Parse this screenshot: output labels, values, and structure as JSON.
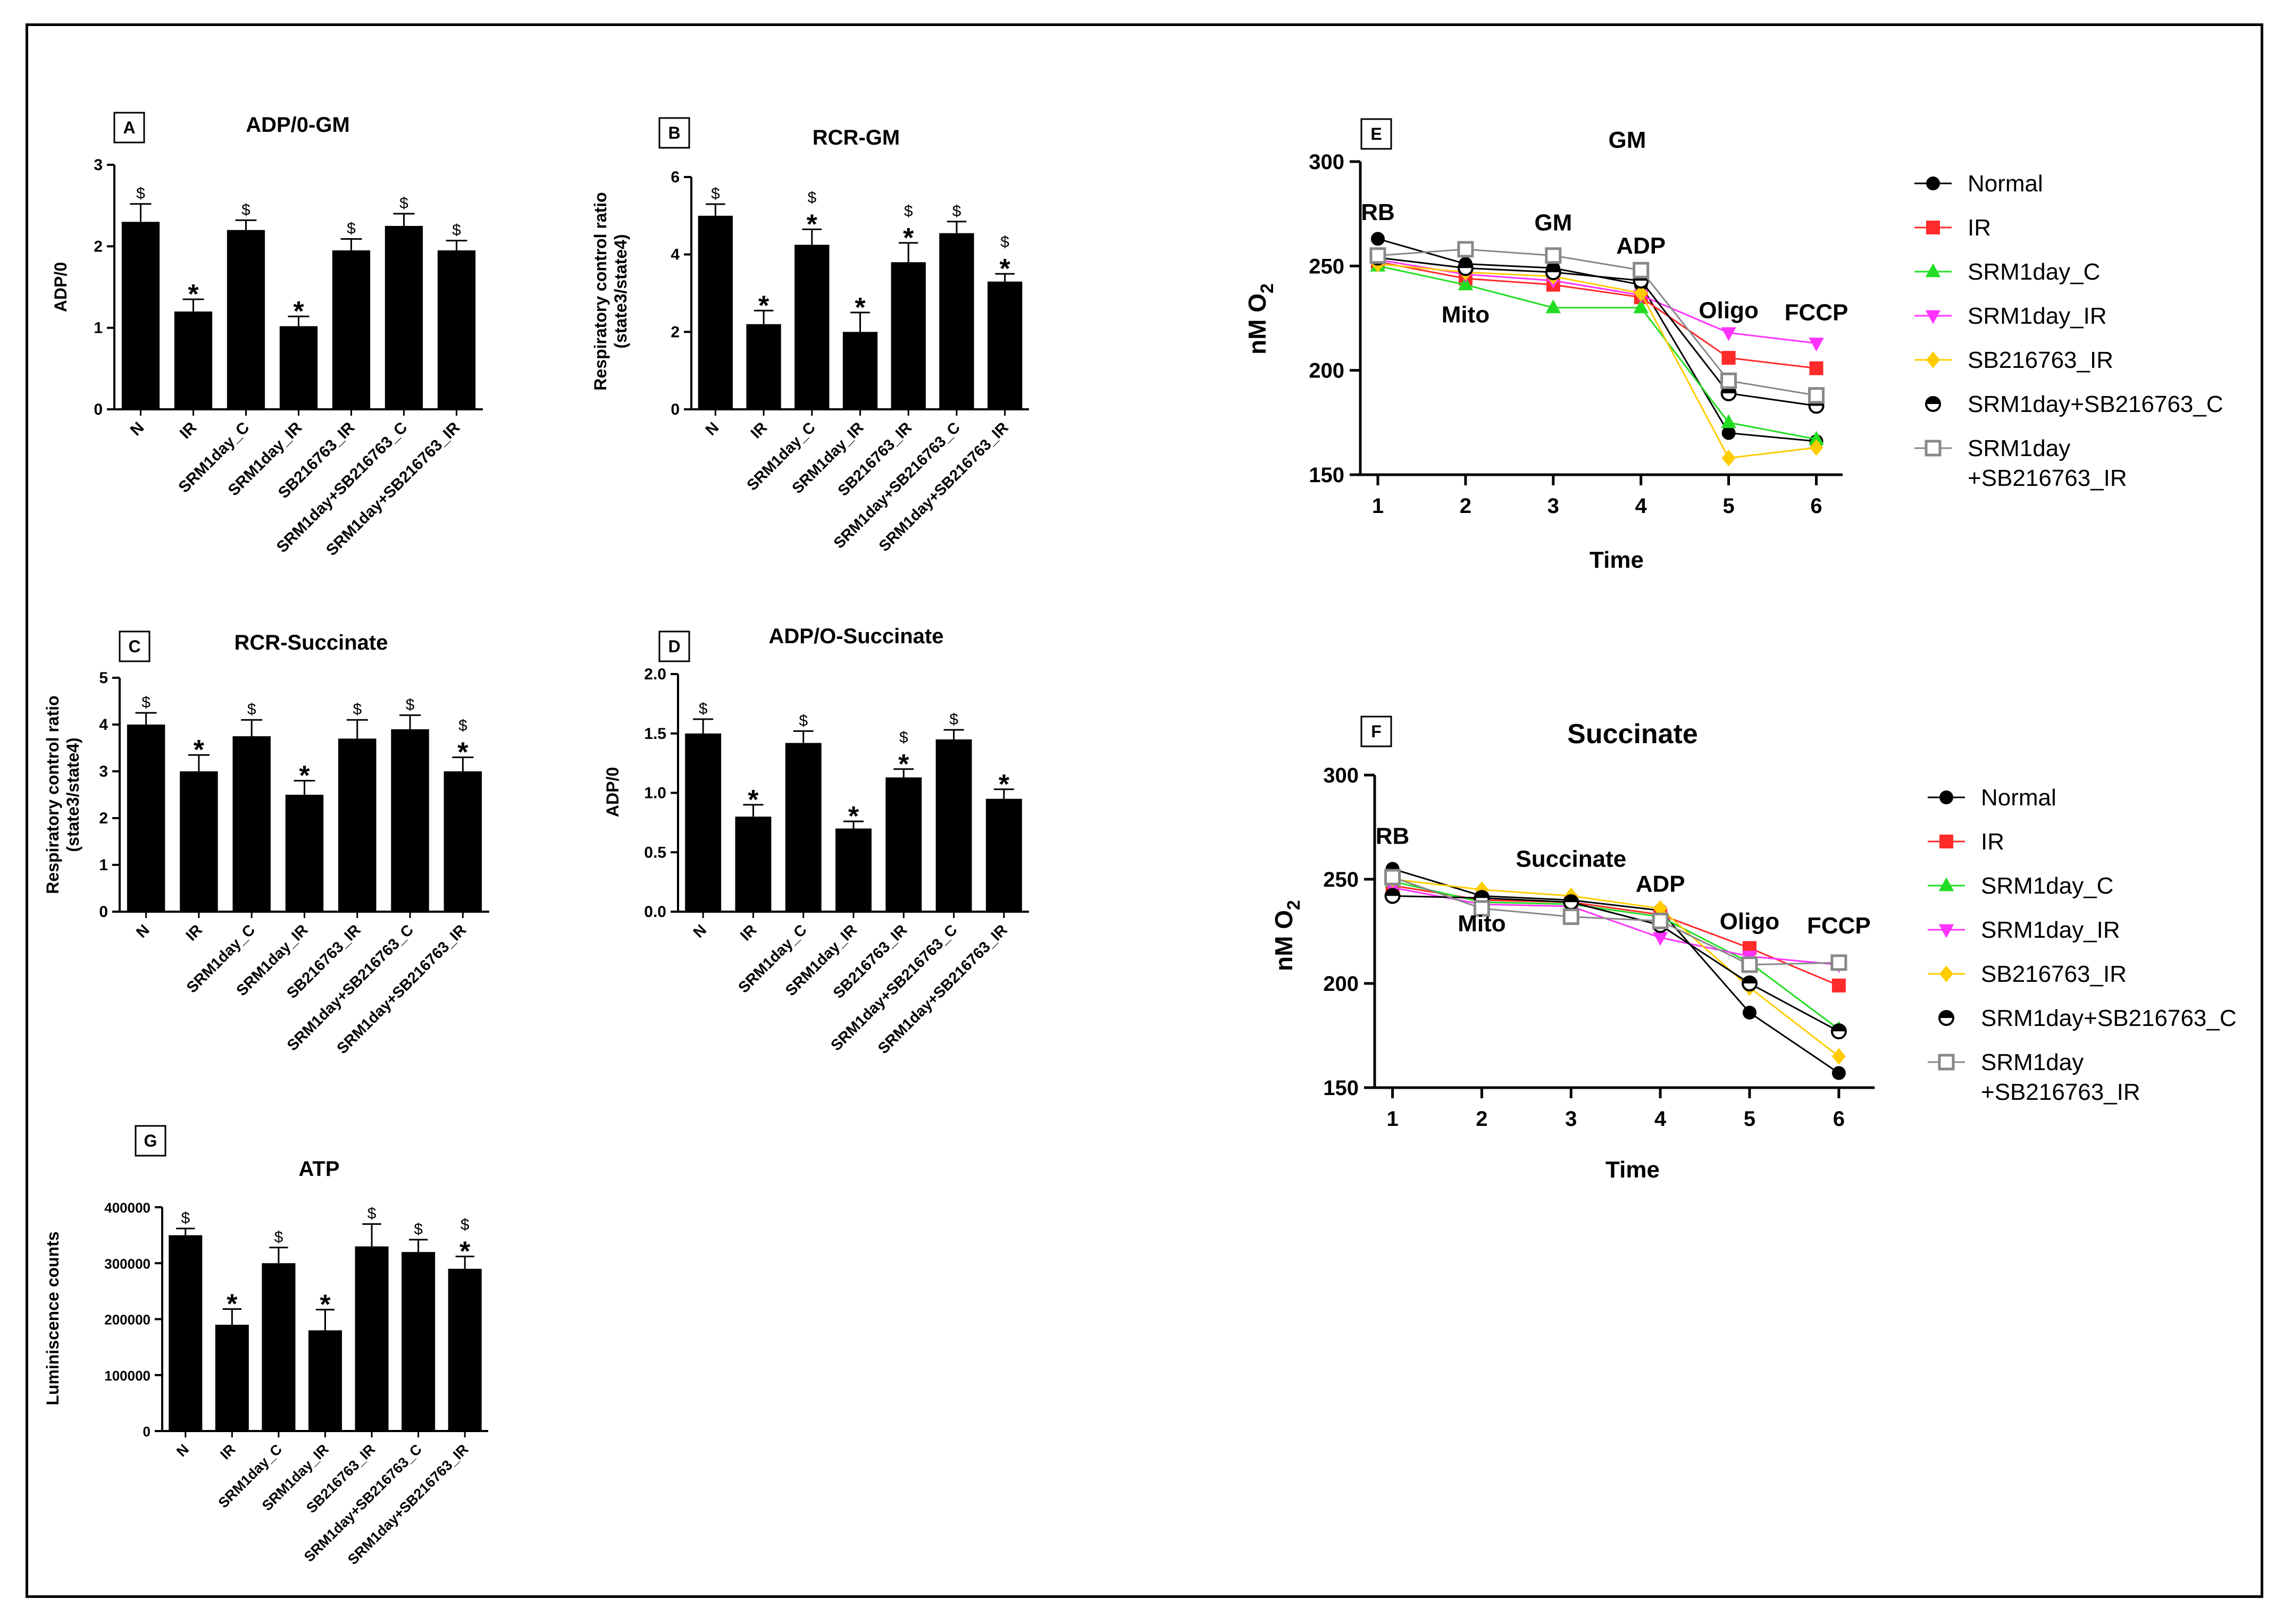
{
  "chart_data": [
    {
      "id": "A",
      "type": "bar",
      "panel_label": "A",
      "title": "ADP/0-GM",
      "ylabel": "ADP/0",
      "ylim": [
        0,
        3
      ],
      "yticks": [
        0,
        1,
        2,
        3
      ],
      "ytick_labels": [
        "0",
        "1",
        "2",
        "3"
      ],
      "categories": [
        "N",
        "IR",
        "SRM1day_C",
        "SRM1day_IR",
        "SB216763_IR",
        "SRM1day+SB216763_C",
        "SRM1day+SB216763_IR"
      ],
      "values": [
        2.3,
        1.2,
        2.2,
        1.02,
        1.95,
        2.25,
        1.95
      ],
      "errors": [
        0.22,
        0.15,
        0.12,
        0.12,
        0.14,
        0.15,
        0.12
      ],
      "annotations": [
        [
          "$"
        ],
        [
          "*"
        ],
        [
          "$"
        ],
        [
          "*"
        ],
        [
          "$"
        ],
        [
          "$"
        ],
        [
          "$"
        ]
      ]
    },
    {
      "id": "B",
      "type": "bar",
      "panel_label": "B",
      "title": "RCR-GM",
      "ylabel": "Respiratory control ratio",
      "ylabel2": "(state3/state4)",
      "ylim": [
        0,
        6
      ],
      "yticks": [
        0,
        2,
        4,
        6
      ],
      "ytick_labels": [
        "0",
        "2",
        "4",
        "6"
      ],
      "categories": [
        "N",
        "IR",
        "SRM1day_C",
        "SRM1day_IR",
        "SB216763_IR",
        "SRM1day+SB216763_C",
        "SRM1day+SB216763_IR"
      ],
      "values": [
        5.0,
        2.2,
        4.25,
        2.0,
        3.8,
        4.55,
        3.3
      ],
      "errors": [
        0.3,
        0.35,
        0.4,
        0.5,
        0.5,
        0.3,
        0.2
      ],
      "annotations": [
        [
          "$"
        ],
        [
          "*"
        ],
        [
          "$",
          "*"
        ],
        [
          "*"
        ],
        [
          "$",
          "*"
        ],
        [
          "$"
        ],
        [
          "$",
          "*"
        ]
      ]
    },
    {
      "id": "C",
      "type": "bar",
      "panel_label": "C",
      "title": "RCR-Succinate",
      "ylabel": "Respiratory control ratio",
      "ylabel2": "(state3/state4)",
      "ylim": [
        0,
        5
      ],
      "yticks": [
        0,
        1,
        2,
        3,
        4,
        5
      ],
      "ytick_labels": [
        "0",
        "1",
        "2",
        "3",
        "4",
        "5"
      ],
      "categories": [
        "N",
        "IR",
        "SRM1day_C",
        "SRM1day_IR",
        "SB216763_IR",
        "SRM1day+SB216763_C",
        "SRM1day+SB216763_IR"
      ],
      "values": [
        4.0,
        3.0,
        3.75,
        2.5,
        3.7,
        3.9,
        3.0
      ],
      "errors": [
        0.25,
        0.35,
        0.35,
        0.3,
        0.4,
        0.3,
        0.3
      ],
      "annotations": [
        [
          "$"
        ],
        [
          "*"
        ],
        [
          "$"
        ],
        [
          "*"
        ],
        [
          "$"
        ],
        [
          "$"
        ],
        [
          "$",
          "*"
        ]
      ]
    },
    {
      "id": "D",
      "type": "bar",
      "panel_label": "D",
      "title": "ADP/O-Succinate",
      "ylabel": "ADP/0",
      "ylim": [
        0,
        2
      ],
      "yticks": [
        0,
        0.5,
        1,
        1.5,
        2
      ],
      "ytick_labels": [
        "0.0",
        "0.5",
        "1.0",
        "1.5",
        "2.0"
      ],
      "categories": [
        "N",
        "IR",
        "SRM1day_C",
        "SRM1day_IR",
        "SB216763_IR",
        "SRM1day+SB216763_C",
        "SRM1day+SB216763_IR"
      ],
      "values": [
        1.5,
        0.8,
        1.42,
        0.7,
        1.13,
        1.45,
        0.95
      ],
      "errors": [
        0.12,
        0.1,
        0.1,
        0.06,
        0.07,
        0.08,
        0.08
      ],
      "annotations": [
        [
          "$"
        ],
        [
          "*"
        ],
        [
          "$"
        ],
        [
          "*"
        ],
        [
          "$",
          "*"
        ],
        [
          "$"
        ],
        [
          "*"
        ]
      ]
    },
    {
      "id": "G",
      "type": "bar",
      "panel_label": "G",
      "title": "ATP",
      "ylabel": "Luminiscence counts",
      "ylim": [
        0,
        400000
      ],
      "yticks": [
        0,
        100000,
        200000,
        300000,
        400000
      ],
      "ytick_labels": [
        "0",
        "100000",
        "200000",
        "300000",
        "400000"
      ],
      "categories": [
        "N",
        "IR",
        "SRM1day_C",
        "SRM1day_IR",
        "SB216763_IR",
        "SRM1day+SB216763_C",
        "SRM1day+SB216763_IR"
      ],
      "values": [
        350000,
        190000,
        300000,
        180000,
        330000,
        320000,
        290000
      ],
      "errors": [
        12000,
        28000,
        28000,
        37000,
        40000,
        22000,
        22000
      ],
      "annotations": [
        [
          "$"
        ],
        [
          "*"
        ],
        [
          "$"
        ],
        [
          "*"
        ],
        [
          "$"
        ],
        [
          "$"
        ],
        [
          "$",
          "*"
        ]
      ]
    },
    {
      "id": "E",
      "type": "line",
      "panel_label": "E",
      "title": "GM",
      "ylabel": "nM O",
      "ylabel_sub": "2",
      "xlabel": "Time",
      "x": [
        1,
        2,
        3,
        4,
        5,
        6
      ],
      "xlim": [
        0.8,
        6.3
      ],
      "ylim": [
        150,
        300
      ],
      "yticks": [
        150,
        200,
        250,
        300
      ],
      "ytick_labels": [
        "150",
        "200",
        "250",
        "300"
      ],
      "xtick_labels": [
        "1",
        "2",
        "3",
        "4",
        "5",
        "6"
      ],
      "point_labels": [
        {
          "text": "RB",
          "x": 1,
          "y": 272
        },
        {
          "text": "Mito",
          "x": 2,
          "y": 223
        },
        {
          "text": "GM",
          "x": 3,
          "y": 267
        },
        {
          "text": "ADP",
          "x": 4,
          "y": 256
        },
        {
          "text": "Oligo",
          "x": 5,
          "y": 225
        },
        {
          "text": "FCCP",
          "x": 6,
          "y": 224
        }
      ],
      "series": [
        {
          "name": "Normal",
          "color": "#000000",
          "marker": "circle",
          "values": [
            263,
            251,
            249,
            241,
            170,
            166
          ]
        },
        {
          "name": "IR",
          "color": "#ff2a2a",
          "marker": "square",
          "values": [
            252,
            244,
            241,
            235,
            206,
            201
          ]
        },
        {
          "name": "SRM1day_C",
          "color": "#22dd22",
          "marker": "triangle-up",
          "values": [
            250,
            241,
            230,
            230,
            175,
            167
          ]
        },
        {
          "name": "SRM1day_IR",
          "color": "#ff33ff",
          "marker": "triangle-down",
          "values": [
            253,
            246,
            243,
            236,
            218,
            213
          ]
        },
        {
          "name": "SB216763_IR",
          "color": "#ffcc00",
          "marker": "diamond",
          "values": [
            251,
            247,
            245,
            237,
            158,
            163
          ]
        },
        {
          "name": "SRM1day+SB216763_C",
          "color": "#000000",
          "marker": "half-circle",
          "values": [
            254,
            249,
            247,
            243,
            189,
            183
          ]
        },
        {
          "name": "SRM1day",
          "name2": "+SB216763_IR",
          "color": "#888888",
          "marker": "open-square",
          "values": [
            255,
            258,
            255,
            248,
            195,
            188
          ]
        }
      ]
    },
    {
      "id": "F",
      "type": "line",
      "panel_label": "F",
      "title": "Succinate",
      "ylabel": "nM O",
      "ylabel_sub": "2",
      "xlabel": "Time",
      "x": [
        1,
        2,
        3,
        4,
        5,
        6
      ],
      "xlim": [
        0.8,
        6.4
      ],
      "ylim": [
        150,
        300
      ],
      "yticks": [
        150,
        200,
        250,
        300
      ],
      "ytick_labels": [
        "150",
        "200",
        "250",
        "300"
      ],
      "xtick_labels": [
        "1",
        "2",
        "3",
        "4",
        "5",
        "6"
      ],
      "point_labels": [
        {
          "text": "RB",
          "x": 1,
          "y": 267
        },
        {
          "text": "Mito",
          "x": 2,
          "y": 225
        },
        {
          "text": "Succinate",
          "x": 3,
          "y": 256
        },
        {
          "text": "ADP",
          "x": 4,
          "y": 244
        },
        {
          "text": "Oligo",
          "x": 5,
          "y": 226
        },
        {
          "text": "FCCP",
          "x": 6,
          "y": 224
        }
      ],
      "series": [
        {
          "name": "Normal",
          "color": "#000000",
          "marker": "circle",
          "values": [
            255,
            242,
            240,
            235,
            186,
            157
          ]
        },
        {
          "name": "IR",
          "color": "#ff2a2a",
          "marker": "square",
          "values": [
            247,
            240,
            239,
            233,
            217,
            199
          ]
        },
        {
          "name": "SRM1day_C",
          "color": "#22dd22",
          "marker": "triangle-up",
          "values": [
            249,
            239,
            238,
            232,
            210,
            178
          ]
        },
        {
          "name": "SRM1day_IR",
          "color": "#ff33ff",
          "marker": "triangle-down",
          "values": [
            246,
            238,
            237,
            222,
            213,
            209
          ]
        },
        {
          "name": "SB216763_IR",
          "color": "#ffcc00",
          "marker": "diamond",
          "values": [
            250,
            245,
            242,
            236,
            198,
            165
          ]
        },
        {
          "name": "SRM1day+SB216763_C",
          "color": "#000000",
          "marker": "half-circle",
          "values": [
            242,
            241,
            239,
            228,
            200,
            177
          ]
        },
        {
          "name": "SRM1day",
          "name2": "+SB216763_IR",
          "color": "#888888",
          "marker": "open-square",
          "values": [
            251,
            236,
            232,
            230,
            209,
            210
          ]
        }
      ]
    }
  ]
}
